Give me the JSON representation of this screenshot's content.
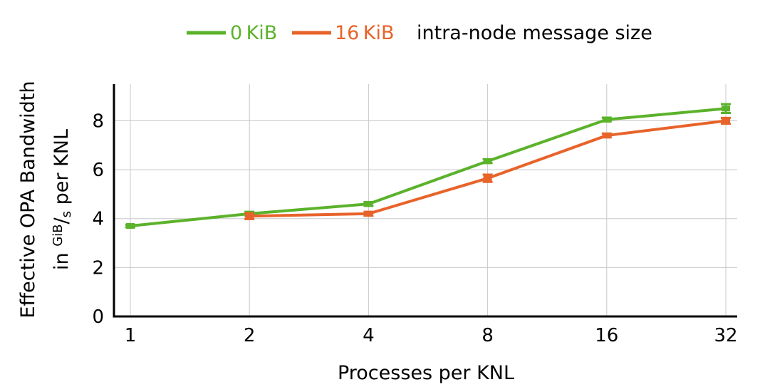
{
  "colors": {
    "green": "#5bb22b",
    "orange": "#e8632a"
  },
  "legend": {
    "entries": [
      {
        "label": "0 KiB",
        "color": "#5bb22b"
      },
      {
        "label": "16 KiB",
        "color": "#e8632a"
      }
    ],
    "suffix": "intra-node message size"
  },
  "chart_data": {
    "type": "line",
    "title": "",
    "xlabel": "Processes per KNL",
    "ylabel_line1": "Effective OPA Bandwidth",
    "ylabel_line2_prefix": "in ",
    "ylabel_unit_num": "GiB",
    "ylabel_unit_sep": "/",
    "ylabel_unit_den": "s",
    "ylabel_line2_suffix": " per KNL",
    "x": [
      1,
      2,
      4,
      8,
      16,
      32
    ],
    "x_scale": "log2",
    "ylim": [
      0,
      9.5
    ],
    "yticks": [
      0,
      2,
      4,
      6,
      8
    ],
    "grid": true,
    "legend_position": "top",
    "series": [
      {
        "name": "0 KiB",
        "color": "#5bb22b",
        "values": [
          3.7,
          4.2,
          4.6,
          6.35,
          8.05,
          8.5
        ],
        "error": [
          0.05,
          0.08,
          0.08,
          0.08,
          0.08,
          0.18
        ]
      },
      {
        "name": "16 KiB",
        "color": "#e8632a",
        "values": [
          null,
          4.1,
          4.2,
          5.65,
          7.4,
          8.0
        ],
        "error": [
          null,
          0.12,
          0.08,
          0.15,
          0.08,
          0.12
        ]
      }
    ]
  }
}
